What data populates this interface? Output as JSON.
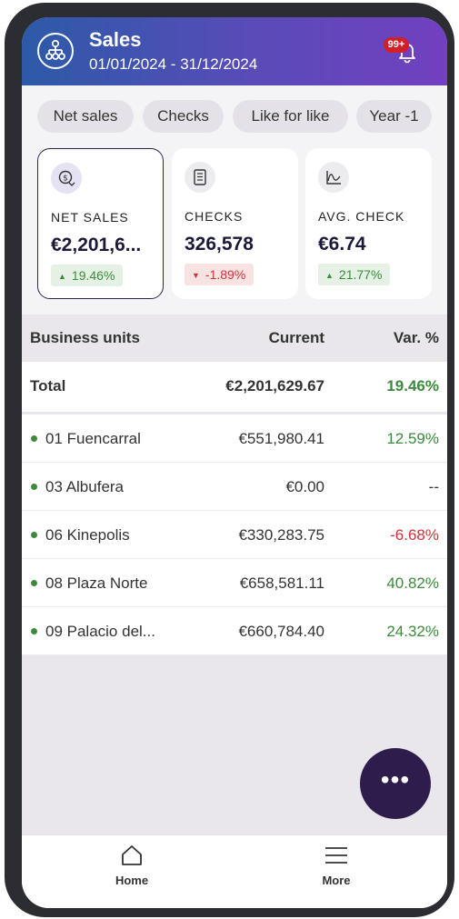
{
  "header": {
    "title": "Sales",
    "date_range": "01/01/2024 - 31/12/2024",
    "notification_badge": "99+"
  },
  "chips": [
    "Net sales",
    "Checks",
    "Like for like",
    "Year -1"
  ],
  "kpis": [
    {
      "label": "NET SALES",
      "value": "€2,201,6...",
      "delta": "19.46%",
      "trend": "up",
      "icon": "dollar-trend-icon",
      "selected": true
    },
    {
      "label": "CHECKS",
      "value": "326,578",
      "delta": "-1.89%",
      "trend": "down",
      "icon": "receipt-icon",
      "selected": false
    },
    {
      "label": "AVG. CHECK",
      "value": "€6.74",
      "delta": "21.77%",
      "trend": "up",
      "icon": "chart-curve-icon",
      "selected": false
    }
  ],
  "table": {
    "headers": {
      "name": "Business units",
      "current": "Current",
      "var": "Var. %"
    },
    "total": {
      "name": "Total",
      "current": "€2,201,629.67",
      "var": "19.46%"
    },
    "rows": [
      {
        "name": "01 Fuencarral",
        "current": "€551,980.41",
        "var": "12.59%"
      },
      {
        "name": "03 Albufera",
        "current": "€0.00",
        "var": "--"
      },
      {
        "name": "06 Kinepolis",
        "current": "€330,283.75",
        "var": "-6.68%"
      },
      {
        "name": "08 Plaza Norte",
        "current": "€658,581.11",
        "var": "40.82%"
      },
      {
        "name": "09 Palacio del...",
        "current": "€660,784.40",
        "var": "24.32%"
      }
    ]
  },
  "fab_label": "•••",
  "nav": {
    "home": "Home",
    "more": "More"
  },
  "colors": {
    "positive": "#3c8a3c",
    "negative": "#d0323a",
    "accent": "#2e1d4c"
  }
}
